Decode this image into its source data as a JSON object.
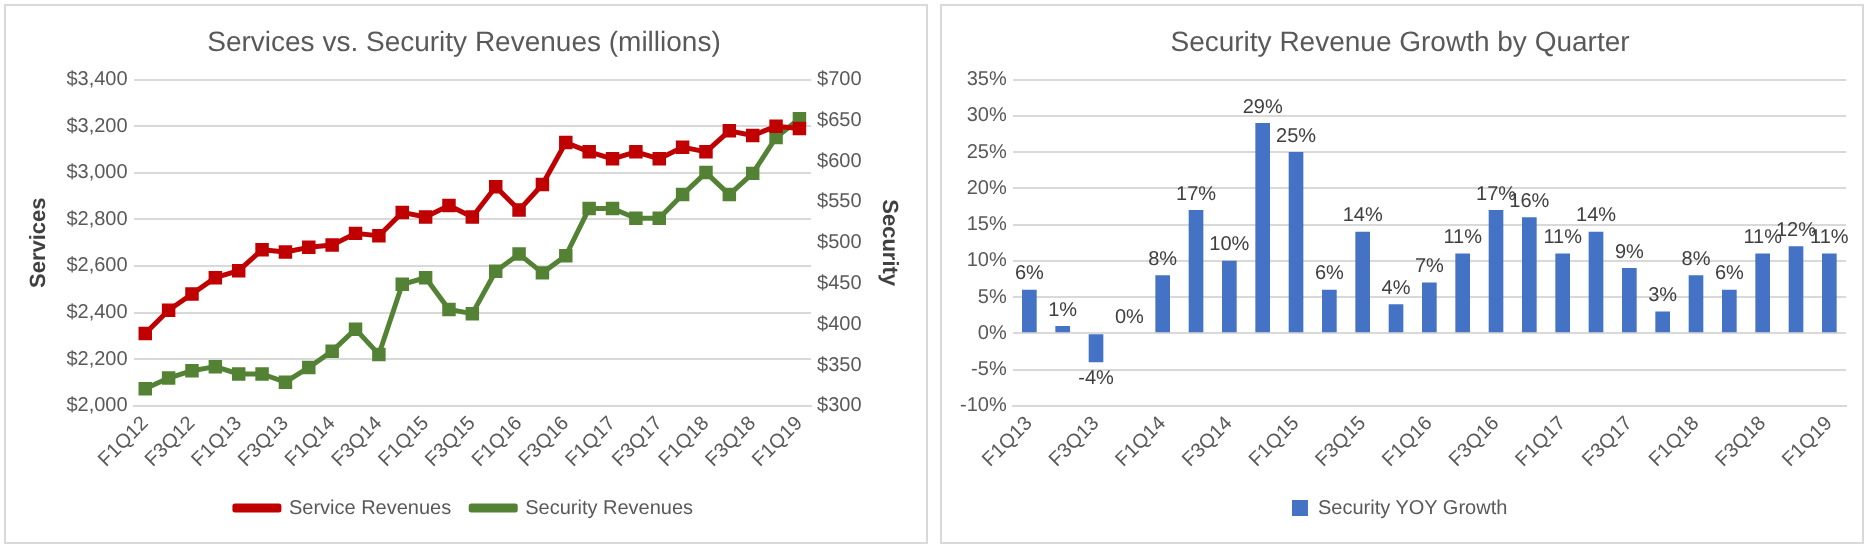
{
  "chart_data": [
    {
      "type": "line",
      "title": "Services vs. Security Revenues (millions)",
      "ylabel": "Services",
      "y2label": "Security",
      "categories": [
        "F1Q12",
        null,
        "F3Q12",
        null,
        "F1Q13",
        null,
        "F3Q13",
        null,
        "F1Q14",
        null,
        "F3Q14",
        null,
        "F1Q15",
        null,
        "F3Q15",
        null,
        "F1Q16",
        null,
        "F3Q16",
        null,
        "F1Q17",
        null,
        "F3Q17",
        null,
        "F1Q18",
        null,
        "F3Q18",
        null,
        "F1Q19"
      ],
      "series": [
        {
          "name": "Service Revenues",
          "color": "#c00000",
          "values": [
            2310,
            2410,
            2480,
            2550,
            2580,
            2670,
            2660,
            2680,
            2690,
            2740,
            2730,
            2830,
            2810,
            2860,
            2810,
            2940,
            2840,
            2950,
            3130,
            3090,
            3060,
            3090,
            3060,
            3110,
            3090,
            3180,
            3160,
            3200,
            3190
          ]
        },
        {
          "name": "Security Revenues",
          "color": "#548235",
          "axis": "y2",
          "values": [
            321,
            334,
            343,
            348,
            339,
            339,
            329,
            347,
            367,
            394,
            363,
            449,
            457,
            418,
            413,
            465,
            486,
            463,
            484,
            542,
            542,
            530,
            530,
            559,
            586,
            559,
            585,
            629,
            652
          ]
        }
      ],
      "ylim": [
        2000,
        3400
      ],
      "yticks": [
        {
          "value": 2000,
          "label": "$2,000"
        },
        {
          "value": 2200,
          "label": "$2,200"
        },
        {
          "value": 2400,
          "label": "$2,400"
        },
        {
          "value": 2600,
          "label": "$2,600"
        },
        {
          "value": 2800,
          "label": "$2,800"
        },
        {
          "value": 3000,
          "label": "$3,000"
        },
        {
          "value": 3200,
          "label": "$3,200"
        },
        {
          "value": 3400,
          "label": "$3,400"
        }
      ],
      "y2lim": [
        300,
        700
      ],
      "y2ticks": [
        {
          "value": 300,
          "label": "$300"
        },
        {
          "value": 350,
          "label": "$350"
        },
        {
          "value": 400,
          "label": "$400"
        },
        {
          "value": 450,
          "label": "$450"
        },
        {
          "value": 500,
          "label": "$500"
        },
        {
          "value": 550,
          "label": "$550"
        },
        {
          "value": 600,
          "label": "$600"
        },
        {
          "value": 650,
          "label": "$650"
        },
        {
          "value": 700,
          "label": "$700"
        }
      ],
      "grid": "y",
      "legend": "bottom",
      "marker": "square",
      "line_style": "solid"
    },
    {
      "type": "bar",
      "title": "Security Revenue Growth by Quarter",
      "categories": [
        "F1Q13",
        null,
        "F3Q13",
        null,
        "F1Q14",
        null,
        "F3Q14",
        null,
        "F1Q15",
        null,
        "F3Q15",
        null,
        "F1Q16",
        null,
        "F3Q16",
        null,
        "F1Q17",
        null,
        "F3Q17",
        null,
        "F1Q18",
        null,
        "F3Q18",
        null,
        "F1Q19"
      ],
      "series": [
        {
          "name": "Security YOY Growth",
          "color": "#4472c4",
          "values": [
            6,
            1,
            -4,
            0,
            8,
            17,
            10,
            29,
            25,
            6,
            14,
            4,
            7,
            11,
            17,
            16,
            11,
            14,
            9,
            3,
            8,
            6,
            11,
            12,
            11
          ],
          "value_labels": [
            "6%",
            "1%",
            "-4%",
            "0%",
            "8%",
            "17%",
            "10%",
            "29%",
            "25%",
            "6%",
            "14%",
            "4%",
            "7%",
            "11%",
            "17%",
            "16%",
            "11%",
            "14%",
            "9%",
            "3%",
            "8%",
            "6%",
            "11%",
            "12%",
            "11%"
          ]
        }
      ],
      "ylim": [
        -10,
        35
      ],
      "yticks": [
        {
          "value": -10,
          "label": "-10%"
        },
        {
          "value": -5,
          "label": "-5%"
        },
        {
          "value": 0,
          "label": "0%"
        },
        {
          "value": 5,
          "label": "5%"
        },
        {
          "value": 10,
          "label": "10%"
        },
        {
          "value": 15,
          "label": "15%"
        },
        {
          "value": 20,
          "label": "20%"
        },
        {
          "value": 25,
          "label": "25%"
        },
        {
          "value": 30,
          "label": "30%"
        },
        {
          "value": 35,
          "label": "35%"
        }
      ],
      "grid": "y",
      "legend": "bottom"
    }
  ]
}
